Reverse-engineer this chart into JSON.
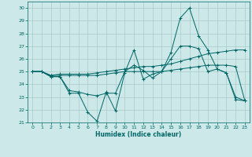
{
  "xlabel": "Humidex (Indice chaleur)",
  "bg_color": "#cce8e8",
  "grid_color": "#aacccc",
  "line_color": "#006666",
  "xlim": [
    -0.5,
    23.5
  ],
  "ylim": [
    21,
    30.5
  ],
  "yticks": [
    21,
    22,
    23,
    24,
    25,
    26,
    27,
    28,
    29,
    30
  ],
  "xticks": [
    0,
    1,
    2,
    3,
    4,
    5,
    6,
    7,
    8,
    9,
    10,
    11,
    12,
    13,
    14,
    15,
    16,
    17,
    18,
    19,
    20,
    21,
    22,
    23
  ],
  "series": [
    [
      25.0,
      25.0,
      24.6,
      24.6,
      23.3,
      23.3,
      21.8,
      21.1,
      23.4,
      21.9,
      24.9,
      26.7,
      24.4,
      24.8,
      25.0,
      26.5,
      29.2,
      30.0,
      27.8,
      26.7,
      25.2,
      24.9,
      22.8,
      22.7
    ],
    [
      25.0,
      25.0,
      24.6,
      24.6,
      23.5,
      23.4,
      23.2,
      23.1,
      23.3,
      23.3,
      25.0,
      25.5,
      25.1,
      24.5,
      25.0,
      26.0,
      27.0,
      27.0,
      26.8,
      25.0,
      25.2,
      24.9,
      23.0,
      22.7
    ],
    [
      25.0,
      25.0,
      24.7,
      24.8,
      24.8,
      24.8,
      24.8,
      24.9,
      25.0,
      25.1,
      25.2,
      25.3,
      25.4,
      25.4,
      25.5,
      25.6,
      25.8,
      26.0,
      26.2,
      26.4,
      26.5,
      26.6,
      26.7,
      26.7
    ],
    [
      25.0,
      25.0,
      24.7,
      24.7,
      24.7,
      24.7,
      24.7,
      24.7,
      24.8,
      24.9,
      25.0,
      25.0,
      25.0,
      25.0,
      25.0,
      25.1,
      25.2,
      25.3,
      25.4,
      25.5,
      25.5,
      25.5,
      25.4,
      22.7
    ]
  ]
}
